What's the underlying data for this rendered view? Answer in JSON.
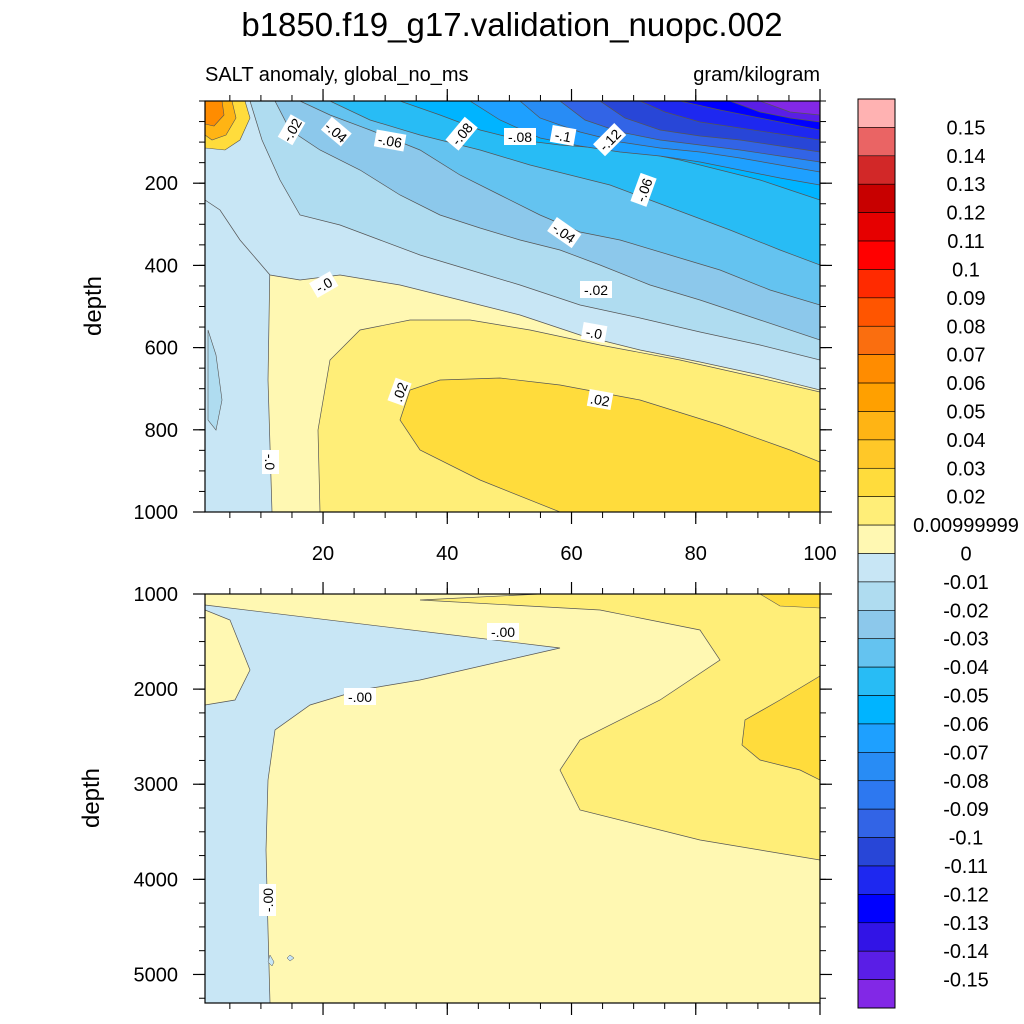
{
  "title": "b1850.f19_g17.validation_nuopc.002",
  "chart_data": {
    "type": "heatmap",
    "title": "b1850.f19_g17.validation_nuopc.002",
    "subtitle_left": "SALT anomaly, global_no_ms",
    "subtitle_right": "gram/kilogram",
    "x_ticks": [
      "20",
      "40",
      "60",
      "80",
      "100"
    ],
    "x_range": [
      1,
      100
    ],
    "panels": [
      {
        "name": "upper",
        "ylabel": "depth",
        "yrange": [
          0,
          1000
        ],
        "y_ticks": [
          "200",
          "400",
          "600",
          "800",
          "1000"
        ],
        "contour_labels": [
          "-.02",
          "-.04",
          "-.06",
          "-.08",
          "-.08",
          "-.1",
          "-.12",
          "-.06",
          "-.04",
          "-.02",
          "-.0",
          "-.0",
          ".02",
          ".02",
          "-.0"
        ]
      },
      {
        "name": "lower",
        "ylabel": "depth",
        "yrange": [
          1000,
          5300
        ],
        "y_ticks": [
          "1000",
          "2000",
          "3000",
          "4000",
          "5000"
        ],
        "contour_labels": [
          "-.00",
          "-.00",
          "-.00"
        ]
      }
    ],
    "colorbar": {
      "labels": [
        "0.15",
        "0.14",
        "0.13",
        "0.12",
        "0.11",
        "0.1",
        "0.09",
        "0.08",
        "0.07",
        "0.06",
        "0.05",
        "0.04",
        "0.03",
        "0.02",
        "0.00999999",
        "0",
        "-0.01",
        "-0.02",
        "-0.03",
        "-0.04",
        "-0.05",
        "-0.06",
        "-0.07",
        "-0.08",
        "-0.09",
        "-0.1",
        "-0.11",
        "-0.12",
        "-0.13",
        "-0.14",
        "-0.15"
      ],
      "colors": [
        "#ffb2b2",
        "#ea6464",
        "#d22828",
        "#c80000",
        "#e60000",
        "#ff0000",
        "#ff2a00",
        "#ff5500",
        "#fa6e0f",
        "#ff8c00",
        "#ffa000",
        "#ffb414",
        "#ffc828",
        "#ffdc3c",
        "#ffee78",
        "#fff8b2",
        "#c8e6f5",
        "#afdcf0",
        "#8cc8eb",
        "#64c3f0",
        "#28bcf5",
        "#00b4ff",
        "#1ea0ff",
        "#288cf5",
        "#2d78f0",
        "#3264e6",
        "#2846d7",
        "#1e28f0",
        "#0000ff",
        "#3214e6",
        "#5a1ee6",
        "#8228e6"
      ]
    }
  }
}
